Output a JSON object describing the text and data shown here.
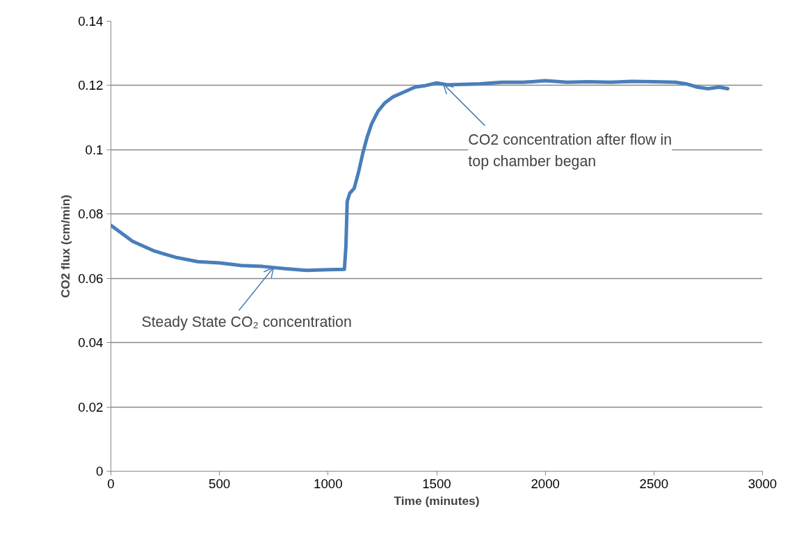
{
  "chart_data": {
    "type": "line",
    "xlabel": "Time (minutes)",
    "ylabel": "CO2 flux (cm/min)",
    "x": [
      0,
      50,
      100,
      150,
      200,
      250,
      300,
      400,
      500,
      600,
      700,
      800,
      900,
      1000,
      1075,
      1082,
      1088,
      1100,
      1120,
      1140,
      1160,
      1180,
      1200,
      1230,
      1260,
      1300,
      1350,
      1400,
      1450,
      1500,
      1550,
      1600,
      1700,
      1800,
      1900,
      2000,
      2100,
      2200,
      2300,
      2400,
      2500,
      2600,
      2650,
      2700,
      2750,
      2800,
      2840
    ],
    "series": [
      {
        "color": "#4a7ebb",
        "values": [
          0.0765,
          0.074,
          0.0715,
          0.07,
          0.0685,
          0.0675,
          0.0665,
          0.0652,
          0.0648,
          0.064,
          0.0637,
          0.063,
          0.0625,
          0.0627,
          0.0628,
          0.07,
          0.084,
          0.0865,
          0.088,
          0.093,
          0.099,
          0.104,
          0.108,
          0.112,
          0.1145,
          0.1165,
          0.118,
          0.1195,
          0.12,
          0.1208,
          0.1202,
          0.1203,
          0.1205,
          0.121,
          0.121,
          0.1215,
          0.121,
          0.1212,
          0.121,
          0.1213,
          0.1212,
          0.121,
          0.1205,
          0.1195,
          0.119,
          0.1195,
          0.119
        ]
      }
    ],
    "xlim": [
      0,
      3000
    ],
    "xticks": [
      0,
      500,
      1000,
      1500,
      2000,
      2500,
      3000
    ],
    "ylim": [
      0,
      0.14
    ],
    "yticks": [
      0,
      {
        "value": 0.02,
        "label": "0.02"
      },
      {
        "value": 0.04,
        "label": "0.04"
      },
      {
        "value": 0.06,
        "label": "0.06"
      },
      {
        "value": 0.08,
        "label": "0.08"
      },
      {
        "value": 0.1,
        "label": "0.1"
      },
      {
        "value": 0.12,
        "label": "0.12"
      },
      {
        "value": 0.14,
        "label": "0.14"
      }
    ],
    "grid": "y",
    "marker": "none",
    "line_style": "solid",
    "annotations": [
      {
        "text": "Steady State CO₂ concentration",
        "x": 749,
        "y": 0.0634
      },
      {
        "text": "CO2 concentration after flow in\ntop chamber began",
        "x": 1530,
        "y": 0.1205
      }
    ]
  }
}
